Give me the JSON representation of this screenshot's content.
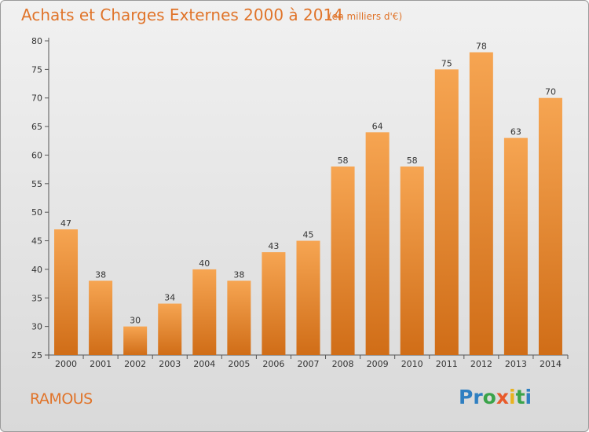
{
  "title": "Achats et Charges Externes 2000 à 2014",
  "unit": "(en milliers d'€)",
  "commune": "RAMOUS",
  "logo": {
    "letters": [
      "P",
      "r",
      "o",
      "x",
      "i",
      "t",
      "i"
    ],
    "colors": [
      "#2f7fc1",
      "#2f7fc1",
      "#3aa34a",
      "#e85a2a",
      "#e8b21f",
      "#3aa34a",
      "#2f7fc1"
    ]
  },
  "chart_data": {
    "type": "bar",
    "categories": [
      "2000",
      "2001",
      "2002",
      "2003",
      "2004",
      "2005",
      "2006",
      "2007",
      "2008",
      "2009",
      "2010",
      "2011",
      "2012",
      "2013",
      "2014"
    ],
    "values": [
      47,
      38,
      30,
      34,
      40,
      38,
      43,
      45,
      58,
      64,
      58,
      75,
      78,
      63,
      70
    ],
    "ylim": [
      25,
      80
    ],
    "yticks": [
      25,
      30,
      35,
      40,
      45,
      50,
      55,
      60,
      65,
      70,
      75,
      80
    ],
    "grid": false,
    "legend": "none",
    "bar_color": "#f08a2e"
  }
}
